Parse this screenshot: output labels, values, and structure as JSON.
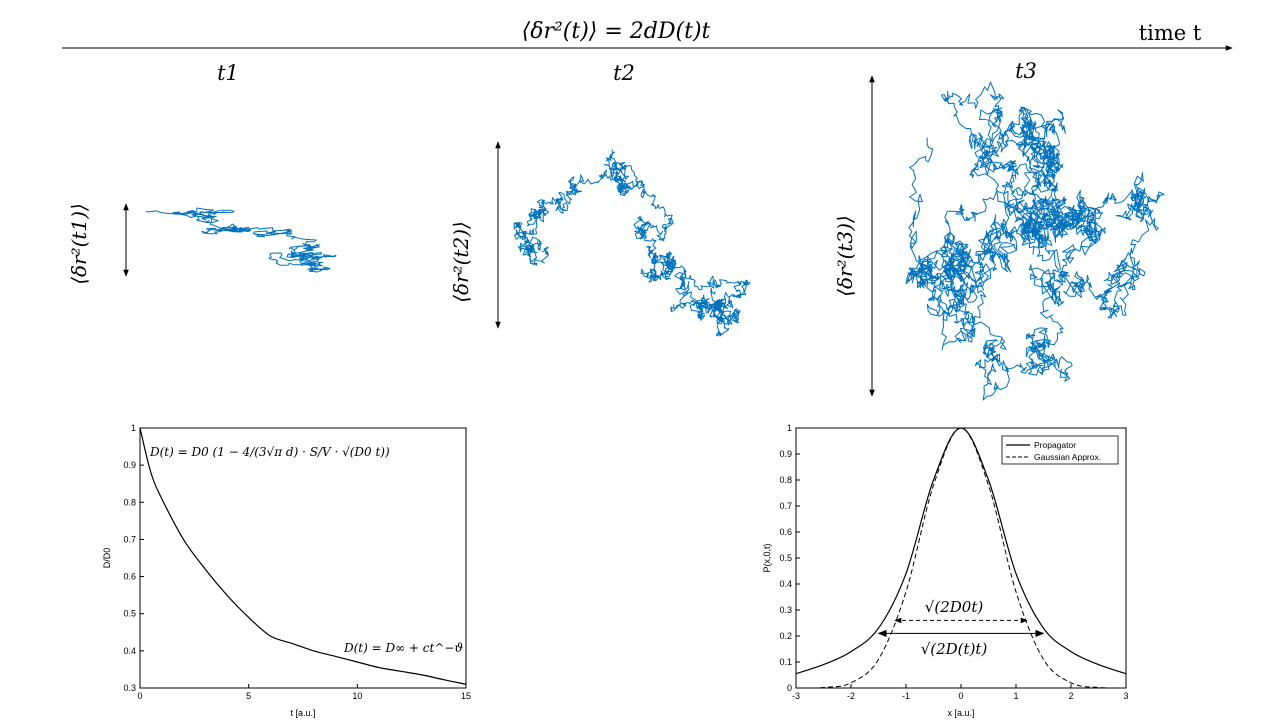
{
  "header": {
    "msd_formula": "⟨δr²(t)⟩ = 2dD(t)t",
    "time_label": "time t",
    "times": [
      "t1",
      "t2",
      "t3"
    ],
    "msd_labels": [
      "⟨δr²(t1)⟩",
      "⟨δr²(t2)⟩",
      "⟨δr²(t3)⟩"
    ]
  },
  "colors": {
    "walk": "#0072BD",
    "ink": "#000000"
  },
  "walks": [
    {
      "name": "walk-t1",
      "steps": 400,
      "seed": 11
    },
    {
      "name": "walk-t2",
      "steps": 1600,
      "seed": 23
    },
    {
      "name": "walk-t3",
      "steps": 3200,
      "seed": 37
    }
  ],
  "chart_data": [
    {
      "type": "line",
      "xlabel": "t [a.u.]",
      "ylabel": "D/D0",
      "xlim": [
        0,
        15
      ],
      "ylim": [
        0.3,
        1
      ],
      "xticks": [
        0,
        5,
        10,
        15
      ],
      "yticks": [
        0.3,
        0.4,
        0.5,
        0.6,
        0.7,
        0.8,
        0.9,
        1
      ],
      "annotations": [
        "D(t) = D0 (1 − 4/(3√π d) · S/V · √(D0 t))",
        "D(t) = D∞ + ct^−ϑ"
      ],
      "series": [
        {
          "name": "D(t)/D0",
          "x": [
            0,
            0.5,
            1,
            2,
            3,
            4,
            5,
            6,
            7,
            8,
            9,
            10,
            11,
            12,
            13,
            14,
            15
          ],
          "y": [
            1.0,
            0.88,
            0.81,
            0.7,
            0.62,
            0.55,
            0.49,
            0.44,
            0.42,
            0.4,
            0.385,
            0.37,
            0.355,
            0.345,
            0.335,
            0.322,
            0.31
          ]
        }
      ]
    },
    {
      "type": "line",
      "xlabel": "x [a.u.]",
      "ylabel": "P(x,0,t)",
      "xlim": [
        -3,
        3
      ],
      "ylim": [
        0,
        1
      ],
      "xticks": [
        -3,
        -2,
        -1,
        0,
        1,
        2,
        3
      ],
      "yticks": [
        0,
        0.1,
        0.2,
        0.3,
        0.4,
        0.5,
        0.6,
        0.7,
        0.8,
        0.9,
        1
      ],
      "legend": [
        "Propagator",
        "Gaussian Approx."
      ],
      "legend_position": "top-right",
      "width_labels": [
        "√(2D0t)",
        "√(2D(t)t)"
      ],
      "width_arrows": [
        {
          "label_index": 0,
          "x_from": -1.2,
          "x_to": 1.2,
          "y": 0.26,
          "style": "dashed"
        },
        {
          "label_index": 1,
          "x_from": -1.5,
          "x_to": 1.5,
          "y": 0.21,
          "style": "solid"
        }
      ],
      "series": [
        {
          "name": "Propagator",
          "style": "solid",
          "x": [
            -3,
            -2.5,
            -2,
            -1.5,
            -1,
            -0.5,
            0,
            0.5,
            1,
            1.5,
            2,
            2.5,
            3
          ],
          "y": [
            0.055,
            0.09,
            0.14,
            0.23,
            0.44,
            0.8,
            1.0,
            0.8,
            0.44,
            0.23,
            0.14,
            0.09,
            0.055
          ]
        },
        {
          "name": "Gaussian Approx.",
          "style": "dashed",
          "x": [
            -3,
            -2.5,
            -2,
            -1.5,
            -1,
            -0.5,
            0,
            0.5,
            1,
            1.5,
            2,
            2.5,
            3
          ],
          "y": [
            0.0,
            0.002,
            0.02,
            0.11,
            0.37,
            0.78,
            1.0,
            0.78,
            0.37,
            0.11,
            0.02,
            0.002,
            0.0
          ]
        }
      ]
    }
  ]
}
